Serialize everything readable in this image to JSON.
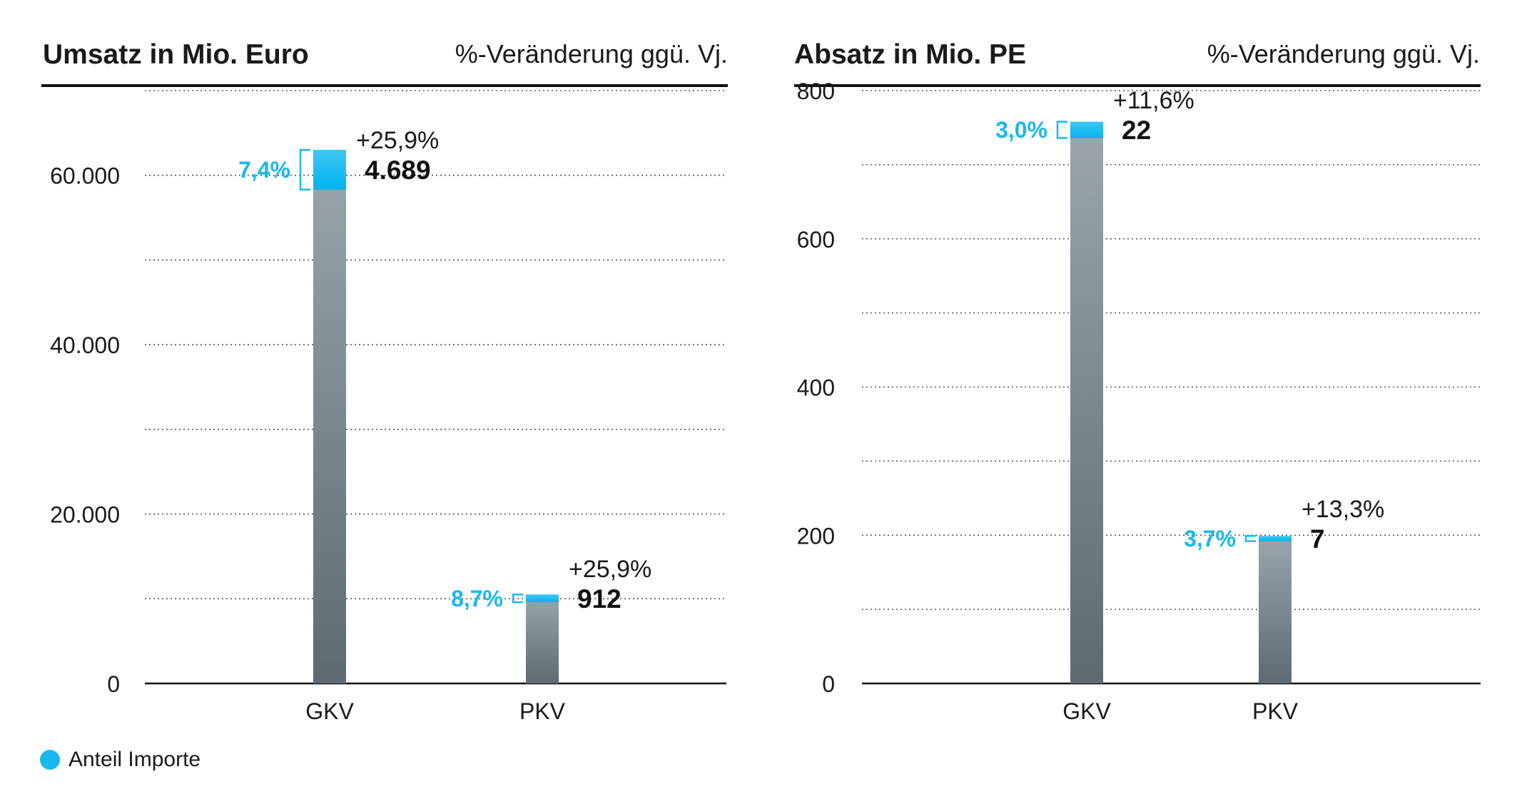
{
  "colors": {
    "import": "#19b8ee",
    "import_dark": "#00b4f0",
    "bar_top": "#9ba6ad",
    "bar_bottom": "#5c6a72",
    "text": "#1a1a1a"
  },
  "legend": {
    "label": "Anteil Importe"
  },
  "panels": [
    {
      "title": "Umsatz in Mio. Euro",
      "subtitle": "%-Veränderung ggü. Vj."
    },
    {
      "title": "Absatz in Mio. PE",
      "subtitle": "%-Veränderung ggü. Vj."
    }
  ],
  "chart_data": [
    {
      "type": "bar",
      "title": "Umsatz in Mio. Euro",
      "subtitle": "%-Veränderung ggü. Vj.",
      "categories": [
        "GKV",
        "PKV"
      ],
      "ylim": [
        0,
        70000
      ],
      "yticks": [
        0,
        20000,
        40000,
        60000
      ],
      "ytick_labels": [
        "0",
        "20.000",
        "40.000",
        "60.000"
      ],
      "grid_step": 10000,
      "grid": true,
      "bars": [
        {
          "category": "GKV",
          "total": 63000,
          "import_value": 4689,
          "import_label": "4.689",
          "import_share": "7,4%",
          "change": "+25,9%"
        },
        {
          "category": "PKV",
          "total": 10500,
          "import_value": 912,
          "import_label": "912",
          "import_share": "8,7%",
          "change": "+25,9%"
        }
      ]
    },
    {
      "type": "bar",
      "title": "Absatz in Mio. PE",
      "subtitle": "%-Veränderung ggü. Vj.",
      "categories": [
        "GKV",
        "PKV"
      ],
      "ylim": [
        0,
        800
      ],
      "yticks": [
        0,
        200,
        400,
        600,
        800
      ],
      "ytick_labels": [
        "0",
        "200",
        "400",
        "600",
        "800"
      ],
      "grid_step": 100,
      "grid": true,
      "bars": [
        {
          "category": "GKV",
          "total": 758,
          "import_value": 22,
          "import_label": "22",
          "import_share": "3,0%",
          "change": "+11,6%"
        },
        {
          "category": "PKV",
          "total": 199,
          "import_value": 7,
          "import_label": "7",
          "import_share": "3,7%",
          "change": "+13,3%"
        }
      ]
    }
  ]
}
